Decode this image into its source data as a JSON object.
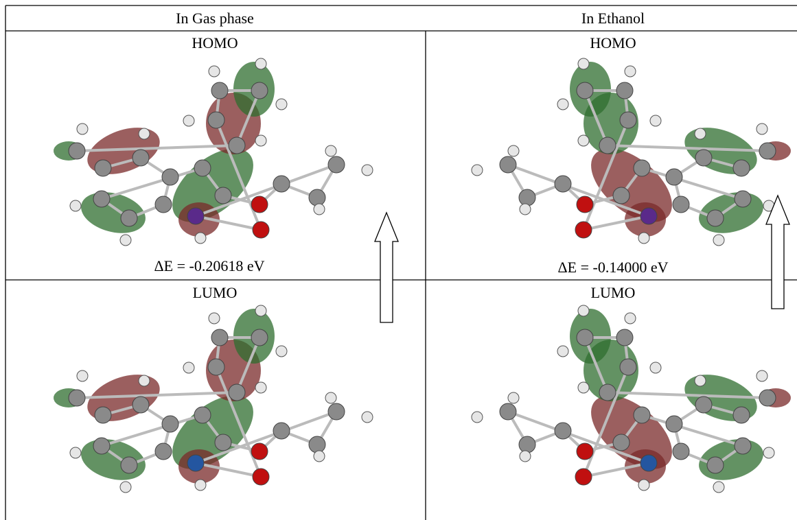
{
  "table": {
    "header": [
      "In Gas phase",
      "In Ethanol"
    ],
    "columns": [
      {
        "homo_label": "HOMO",
        "energy": "ΔE = -0.20618 eV",
        "lumo_label": "LUMO"
      },
      {
        "homo_label": "HOMO",
        "energy": "ΔE = -0.14000 eV",
        "lumo_label": "LUMO"
      }
    ]
  }
}
